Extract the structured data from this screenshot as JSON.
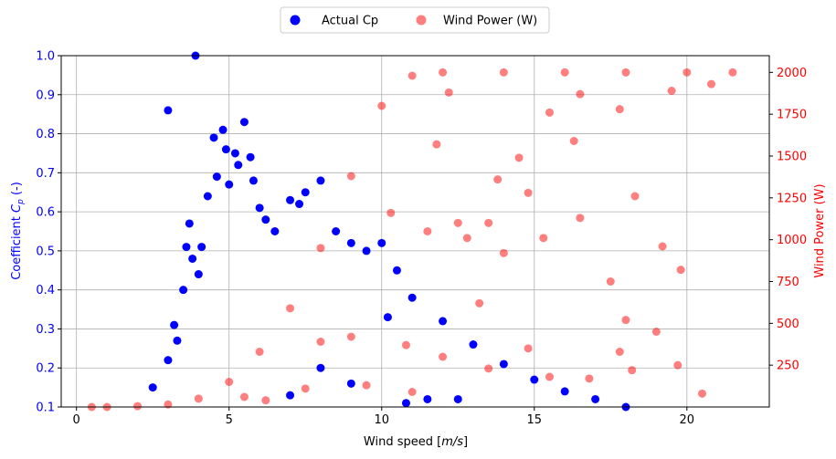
{
  "chart_data": {
    "type": "scatter",
    "title": "",
    "xlabel": "Wind speed [m/s]",
    "ylabel_left": "Coefficient Cp (-)",
    "ylabel_right": "Wind Power (W)",
    "xlim": [
      -0.5,
      22.7
    ],
    "ylim_left": [
      0.1,
      1.0
    ],
    "ylim_right": [
      0,
      2100
    ],
    "x_ticks": [
      "0",
      "5",
      "10",
      "15",
      "20"
    ],
    "y_left_ticks": [
      "0.1",
      "0.2",
      "0.3",
      "0.4",
      "0.5",
      "0.6",
      "0.7",
      "0.8",
      "0.9",
      "1.0"
    ],
    "y_right_ticks": [
      "250",
      "500",
      "750",
      "1000",
      "1250",
      "1500",
      "1750",
      "2000"
    ],
    "grid": true,
    "legend_placement": "top-center (outside plot)",
    "colors": {
      "cp": "#0000ff",
      "power": "#ff0000",
      "left_axis_text": "#0000ff",
      "right_axis_text": "#ff0000"
    },
    "series": [
      {
        "name": "Actual Cp",
        "axis": "left",
        "marker": "circle, opaque",
        "points": [
          [
            2.5,
            0.15
          ],
          [
            3.0,
            0.22
          ],
          [
            3.2,
            0.31
          ],
          [
            3.3,
            0.27
          ],
          [
            3.5,
            0.4
          ],
          [
            3.6,
            0.51
          ],
          [
            3.7,
            0.57
          ],
          [
            3.8,
            0.48
          ],
          [
            3.9,
            1.0
          ],
          [
            4.0,
            0.44
          ],
          [
            4.1,
            0.51
          ],
          [
            4.3,
            0.64
          ],
          [
            4.5,
            0.79
          ],
          [
            4.6,
            0.69
          ],
          [
            4.8,
            0.81
          ],
          [
            4.9,
            0.76
          ],
          [
            5.0,
            0.67
          ],
          [
            5.2,
            0.75
          ],
          [
            5.3,
            0.72
          ],
          [
            5.5,
            0.83
          ],
          [
            5.7,
            0.74
          ],
          [
            5.8,
            0.68
          ],
          [
            6.0,
            0.61
          ],
          [
            6.2,
            0.58
          ],
          [
            6.5,
            0.55
          ],
          [
            7.0,
            0.63
          ],
          [
            7.3,
            0.62
          ],
          [
            7.5,
            0.65
          ],
          [
            8.0,
            0.68
          ],
          [
            8.5,
            0.55
          ],
          [
            9.0,
            0.52
          ],
          [
            9.5,
            0.5
          ],
          [
            10.0,
            0.52
          ],
          [
            10.5,
            0.45
          ],
          [
            11.0,
            0.38
          ],
          [
            12.0,
            0.32
          ],
          [
            13.0,
            0.26
          ],
          [
            14.0,
            0.21
          ],
          [
            15.0,
            0.17
          ],
          [
            16.0,
            0.14
          ],
          [
            17.0,
            0.12
          ],
          [
            18.0,
            0.1
          ],
          [
            3.0,
            0.86
          ],
          [
            10.2,
            0.33
          ],
          [
            10.8,
            0.11
          ],
          [
            11.5,
            0.12
          ],
          [
            12.5,
            0.12
          ],
          [
            8.0,
            0.2
          ],
          [
            7.0,
            0.13
          ],
          [
            9.0,
            0.16
          ]
        ]
      },
      {
        "name": "Wind Power (W)",
        "axis": "right",
        "marker": "circle, alpha 0.5",
        "points": [
          [
            0.5,
            0
          ],
          [
            1.0,
            0
          ],
          [
            2.0,
            5
          ],
          [
            3.0,
            15
          ],
          [
            4.0,
            50
          ],
          [
            5.0,
            150
          ],
          [
            6.0,
            330
          ],
          [
            7.0,
            590
          ],
          [
            8.0,
            950
          ],
          [
            9.0,
            1380
          ],
          [
            10.0,
            1800
          ],
          [
            11.0,
            1980
          ],
          [
            12.0,
            2000
          ],
          [
            14.0,
            2000
          ],
          [
            16.0,
            2000
          ],
          [
            18.0,
            2000
          ],
          [
            20.0,
            2000
          ],
          [
            21.5,
            2000
          ],
          [
            20.8,
            1930
          ],
          [
            19.5,
            1890
          ],
          [
            16.5,
            1870
          ],
          [
            17.8,
            1780
          ],
          [
            15.5,
            1760
          ],
          [
            16.3,
            1590
          ],
          [
            14.5,
            1490
          ],
          [
            13.8,
            1360
          ],
          [
            14.8,
            1280
          ],
          [
            18.3,
            1260
          ],
          [
            12.5,
            1100
          ],
          [
            13.5,
            1100
          ],
          [
            11.5,
            1050
          ],
          [
            12.8,
            1010
          ],
          [
            14.0,
            920
          ],
          [
            16.5,
            1130
          ],
          [
            19.2,
            960
          ],
          [
            19.8,
            820
          ],
          [
            15.3,
            1010
          ],
          [
            17.5,
            750
          ],
          [
            13.2,
            620
          ],
          [
            18.0,
            520
          ],
          [
            19.0,
            450
          ],
          [
            17.8,
            330
          ],
          [
            14.8,
            350
          ],
          [
            12.0,
            300
          ],
          [
            10.8,
            370
          ],
          [
            9.0,
            420
          ],
          [
            8.0,
            390
          ],
          [
            7.5,
            110
          ],
          [
            9.5,
            130
          ],
          [
            11.0,
            90
          ],
          [
            13.5,
            230
          ],
          [
            15.5,
            180
          ],
          [
            16.8,
            170
          ],
          [
            18.2,
            220
          ],
          [
            19.7,
            250
          ],
          [
            20.5,
            80
          ],
          [
            6.2,
            40
          ],
          [
            5.5,
            60
          ],
          [
            10.3,
            1160
          ],
          [
            11.8,
            1570
          ],
          [
            12.2,
            1880
          ]
        ]
      }
    ]
  }
}
